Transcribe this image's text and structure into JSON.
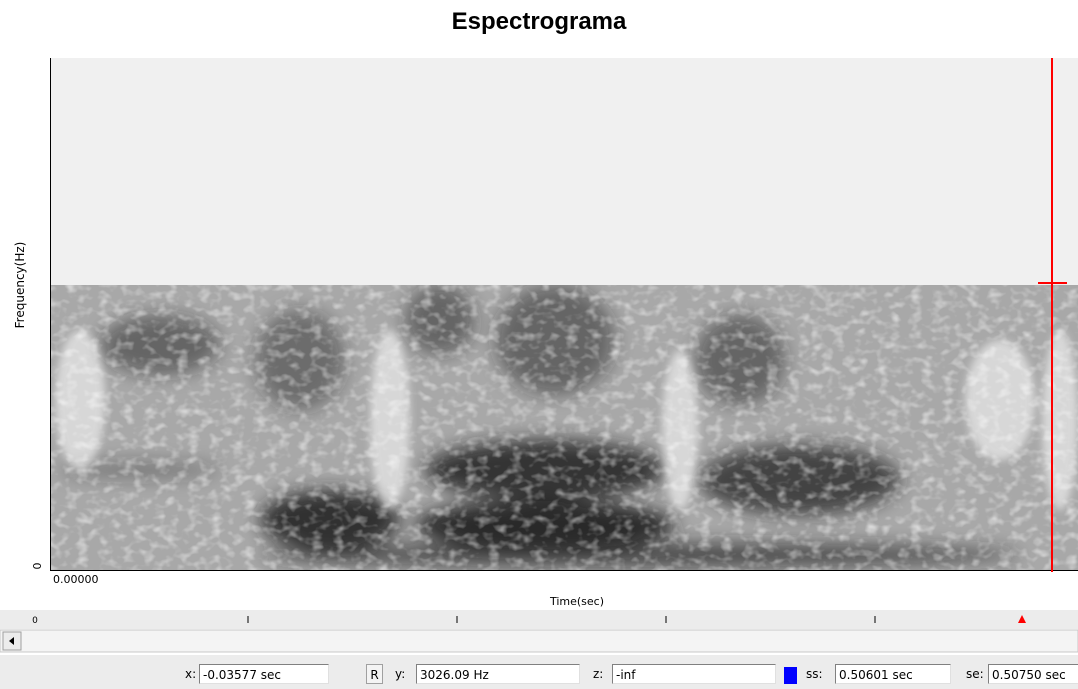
{
  "title": "Espectrograma",
  "plot": {
    "y_label": "Frequency(Hz)",
    "y_tick": "0",
    "x_tick": "0.00000",
    "x_label": "Time(sec)"
  },
  "ruler": {
    "start_label": "0"
  },
  "status": {
    "x_label": "x:",
    "x_value": "-0.03577 sec",
    "r_button": "R",
    "y_label": "y:",
    "y_value": "3026.09 Hz",
    "z_label": "z:",
    "z_value": "-inf",
    "ss_label": "ss:",
    "ss_value": "0.50601 sec",
    "se_label": "se:",
    "se_value": "0.50750 sec"
  }
}
